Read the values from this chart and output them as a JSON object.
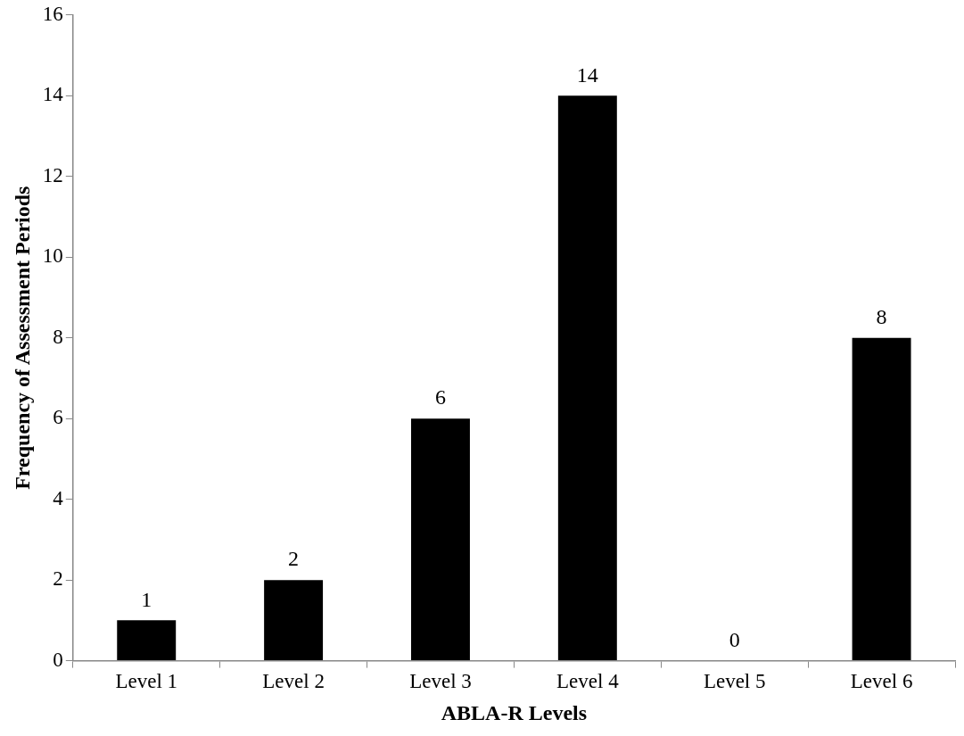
{
  "chart_data": {
    "type": "bar",
    "xlabel": "ABLA-R Levels",
    "ylabel": "Frequency of Assessment Periods",
    "categories": [
      "Level 1",
      "Level 2",
      "Level 3",
      "Level 4",
      "Level 5",
      "Level 6"
    ],
    "values": [
      1,
      2,
      6,
      14,
      0,
      8
    ],
    "color": "#000000",
    "ylim": [
      0,
      16
    ],
    "yticks": [
      0,
      2,
      4,
      6,
      8,
      10,
      12,
      14,
      16
    ],
    "grid": false,
    "legend": false,
    "data_labels": true
  }
}
